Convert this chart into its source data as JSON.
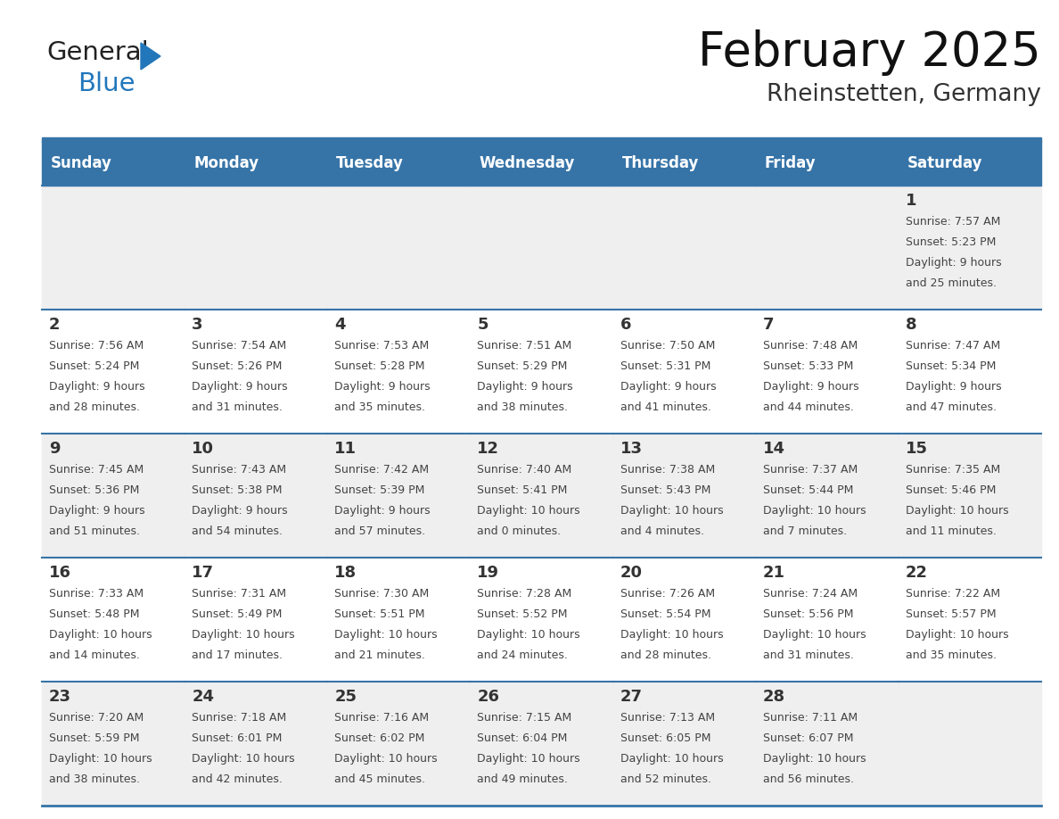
{
  "title": "February 2025",
  "subtitle": "Rheinstetten, Germany",
  "header_bg": "#3674a8",
  "header_text_color": "#ffffff",
  "day_names": [
    "Sunday",
    "Monday",
    "Tuesday",
    "Wednesday",
    "Thursday",
    "Friday",
    "Saturday"
  ],
  "cell_bg_odd": "#efefef",
  "cell_bg_even": "#ffffff",
  "line_color": "#3674a8",
  "date_color": "#333333",
  "info_color": "#444444",
  "logo_general_color": "#222222",
  "logo_blue_color": "#2277bb",
  "weeks": [
    [
      null,
      null,
      null,
      null,
      null,
      null,
      1
    ],
    [
      2,
      3,
      4,
      5,
      6,
      7,
      8
    ],
    [
      9,
      10,
      11,
      12,
      13,
      14,
      15
    ],
    [
      16,
      17,
      18,
      19,
      20,
      21,
      22
    ],
    [
      23,
      24,
      25,
      26,
      27,
      28,
      null
    ]
  ],
  "day_data": {
    "1": {
      "sunrise": "7:57 AM",
      "sunset": "5:23 PM",
      "daylight_h": "9 hours",
      "daylight_m": "and 25 minutes."
    },
    "2": {
      "sunrise": "7:56 AM",
      "sunset": "5:24 PM",
      "daylight_h": "9 hours",
      "daylight_m": "and 28 minutes."
    },
    "3": {
      "sunrise": "7:54 AM",
      "sunset": "5:26 PM",
      "daylight_h": "9 hours",
      "daylight_m": "and 31 minutes."
    },
    "4": {
      "sunrise": "7:53 AM",
      "sunset": "5:28 PM",
      "daylight_h": "9 hours",
      "daylight_m": "and 35 minutes."
    },
    "5": {
      "sunrise": "7:51 AM",
      "sunset": "5:29 PM",
      "daylight_h": "9 hours",
      "daylight_m": "and 38 minutes."
    },
    "6": {
      "sunrise": "7:50 AM",
      "sunset": "5:31 PM",
      "daylight_h": "9 hours",
      "daylight_m": "and 41 minutes."
    },
    "7": {
      "sunrise": "7:48 AM",
      "sunset": "5:33 PM",
      "daylight_h": "9 hours",
      "daylight_m": "and 44 minutes."
    },
    "8": {
      "sunrise": "7:47 AM",
      "sunset": "5:34 PM",
      "daylight_h": "9 hours",
      "daylight_m": "and 47 minutes."
    },
    "9": {
      "sunrise": "7:45 AM",
      "sunset": "5:36 PM",
      "daylight_h": "9 hours",
      "daylight_m": "and 51 minutes."
    },
    "10": {
      "sunrise": "7:43 AM",
      "sunset": "5:38 PM",
      "daylight_h": "9 hours",
      "daylight_m": "and 54 minutes."
    },
    "11": {
      "sunrise": "7:42 AM",
      "sunset": "5:39 PM",
      "daylight_h": "9 hours",
      "daylight_m": "and 57 minutes."
    },
    "12": {
      "sunrise": "7:40 AM",
      "sunset": "5:41 PM",
      "daylight_h": "10 hours",
      "daylight_m": "and 0 minutes."
    },
    "13": {
      "sunrise": "7:38 AM",
      "sunset": "5:43 PM",
      "daylight_h": "10 hours",
      "daylight_m": "and 4 minutes."
    },
    "14": {
      "sunrise": "7:37 AM",
      "sunset": "5:44 PM",
      "daylight_h": "10 hours",
      "daylight_m": "and 7 minutes."
    },
    "15": {
      "sunrise": "7:35 AM",
      "sunset": "5:46 PM",
      "daylight_h": "10 hours",
      "daylight_m": "and 11 minutes."
    },
    "16": {
      "sunrise": "7:33 AM",
      "sunset": "5:48 PM",
      "daylight_h": "10 hours",
      "daylight_m": "and 14 minutes."
    },
    "17": {
      "sunrise": "7:31 AM",
      "sunset": "5:49 PM",
      "daylight_h": "10 hours",
      "daylight_m": "and 17 minutes."
    },
    "18": {
      "sunrise": "7:30 AM",
      "sunset": "5:51 PM",
      "daylight_h": "10 hours",
      "daylight_m": "and 21 minutes."
    },
    "19": {
      "sunrise": "7:28 AM",
      "sunset": "5:52 PM",
      "daylight_h": "10 hours",
      "daylight_m": "and 24 minutes."
    },
    "20": {
      "sunrise": "7:26 AM",
      "sunset": "5:54 PM",
      "daylight_h": "10 hours",
      "daylight_m": "and 28 minutes."
    },
    "21": {
      "sunrise": "7:24 AM",
      "sunset": "5:56 PM",
      "daylight_h": "10 hours",
      "daylight_m": "and 31 minutes."
    },
    "22": {
      "sunrise": "7:22 AM",
      "sunset": "5:57 PM",
      "daylight_h": "10 hours",
      "daylight_m": "and 35 minutes."
    },
    "23": {
      "sunrise": "7:20 AM",
      "sunset": "5:59 PM",
      "daylight_h": "10 hours",
      "daylight_m": "and 38 minutes."
    },
    "24": {
      "sunrise": "7:18 AM",
      "sunset": "6:01 PM",
      "daylight_h": "10 hours",
      "daylight_m": "and 42 minutes."
    },
    "25": {
      "sunrise": "7:16 AM",
      "sunset": "6:02 PM",
      "daylight_h": "10 hours",
      "daylight_m": "and 45 minutes."
    },
    "26": {
      "sunrise": "7:15 AM",
      "sunset": "6:04 PM",
      "daylight_h": "10 hours",
      "daylight_m": "and 49 minutes."
    },
    "27": {
      "sunrise": "7:13 AM",
      "sunset": "6:05 PM",
      "daylight_h": "10 hours",
      "daylight_m": "and 52 minutes."
    },
    "28": {
      "sunrise": "7:11 AM",
      "sunset": "6:07 PM",
      "daylight_h": "10 hours",
      "daylight_m": "and 56 minutes."
    }
  }
}
